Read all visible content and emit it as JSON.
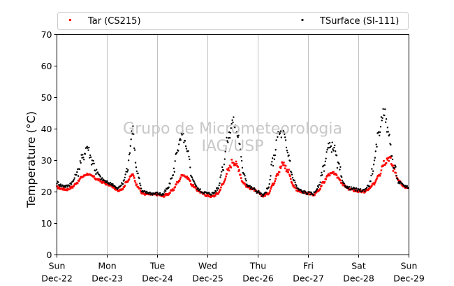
{
  "chart_data": {
    "type": "scatter",
    "ylabel": "Temperature (°C)",
    "ylim": [
      0,
      70
    ],
    "xlim": [
      0,
      7
    ],
    "yticks": [
      0,
      10,
      20,
      30,
      40,
      50,
      60,
      70
    ],
    "xticks": [
      {
        "day": "Sun",
        "date": "Dec-22"
      },
      {
        "day": "Mon",
        "date": "Dec-23"
      },
      {
        "day": "Tue",
        "date": "Dec-24"
      },
      {
        "day": "Wed",
        "date": "Dec-25"
      },
      {
        "day": "Thu",
        "date": "Dec-26"
      },
      {
        "day": "Fri",
        "date": "Dec-27"
      },
      {
        "day": "Sat",
        "date": "Dec-28"
      },
      {
        "day": "Sun",
        "date": "Dec-29"
      }
    ],
    "grid": "vertical",
    "legend": "top",
    "watermark": [
      "Grupo de Micrometeorologia",
      "IAG/USP"
    ],
    "series": [
      {
        "name": "Tar (CS215)",
        "color": "#ff0000",
        "marker": "square",
        "x": [
          0.0,
          0.1,
          0.2,
          0.3,
          0.4,
          0.5,
          0.6,
          0.7,
          0.8,
          0.9,
          1.0,
          1.1,
          1.2,
          1.3,
          1.4,
          1.5,
          1.6,
          1.7,
          1.8,
          1.9,
          2.0,
          2.1,
          2.2,
          2.3,
          2.4,
          2.5,
          2.6,
          2.7,
          2.8,
          2.9,
          3.0,
          3.1,
          3.2,
          3.3,
          3.4,
          3.5,
          3.6,
          3.7,
          3.8,
          3.9,
          4.0,
          4.1,
          4.2,
          4.3,
          4.4,
          4.5,
          4.6,
          4.7,
          4.8,
          4.9,
          5.0,
          5.1,
          5.2,
          5.3,
          5.4,
          5.5,
          5.6,
          5.7,
          5.8,
          5.9,
          6.0,
          6.1,
          6.2,
          6.3,
          6.4,
          6.5,
          6.6,
          6.7,
          6.8,
          6.9,
          7.0
        ],
        "y": [
          21.5,
          21.0,
          20.8,
          21.5,
          23.0,
          24.8,
          25.7,
          25.0,
          24.0,
          23.2,
          22.5,
          21.8,
          20.5,
          21.0,
          23.5,
          25.5,
          22.0,
          19.5,
          19.3,
          19.2,
          19.2,
          18.7,
          19.3,
          20.5,
          23.0,
          25.5,
          24.5,
          22.0,
          20.5,
          19.5,
          18.8,
          18.6,
          19.5,
          22.5,
          26.5,
          30.0,
          28.0,
          23.0,
          21.5,
          20.8,
          19.8,
          18.7,
          19.5,
          22.5,
          26.5,
          29.0,
          26.5,
          22.0,
          20.3,
          19.8,
          19.5,
          19.0,
          20.5,
          23.0,
          25.5,
          26.0,
          24.5,
          22.0,
          21.0,
          20.5,
          20.2,
          20.0,
          20.8,
          22.5,
          25.5,
          29.5,
          31.0,
          27.5,
          23.5,
          21.5,
          21.0
        ]
      },
      {
        "name": "TSurface (SI-111)",
        "color": "#000000",
        "marker": "circle",
        "x": [
          0.0,
          0.1,
          0.2,
          0.3,
          0.4,
          0.5,
          0.6,
          0.7,
          0.8,
          0.9,
          1.0,
          1.1,
          1.2,
          1.3,
          1.4,
          1.5,
          1.6,
          1.7,
          1.8,
          1.9,
          2.0,
          2.1,
          2.2,
          2.3,
          2.4,
          2.5,
          2.6,
          2.7,
          2.8,
          2.9,
          3.0,
          3.1,
          3.2,
          3.3,
          3.4,
          3.5,
          3.6,
          3.7,
          3.8,
          3.9,
          4.0,
          4.1,
          4.2,
          4.3,
          4.4,
          4.5,
          4.6,
          4.7,
          4.8,
          4.9,
          5.0,
          5.1,
          5.2,
          5.3,
          5.4,
          5.5,
          5.6,
          5.7,
          5.8,
          5.9,
          6.0,
          6.1,
          6.2,
          6.3,
          6.4,
          6.5,
          6.6,
          6.7,
          6.8,
          6.9,
          7.0
        ],
        "y": [
          23.0,
          22.0,
          21.8,
          23.0,
          26.0,
          30.5,
          34.5,
          30.0,
          26.0,
          24.0,
          23.0,
          22.5,
          21.0,
          22.5,
          27.0,
          40.0,
          26.0,
          20.0,
          19.8,
          19.5,
          19.5,
          19.2,
          21.0,
          25.0,
          34.0,
          38.0,
          32.0,
          24.0,
          21.0,
          20.0,
          19.5,
          19.5,
          21.0,
          28.0,
          37.0,
          42.5,
          38.0,
          27.0,
          22.0,
          21.0,
          20.0,
          18.8,
          21.0,
          30.0,
          38.5,
          38.5,
          32.0,
          24.0,
          20.8,
          20.0,
          19.6,
          19.5,
          21.5,
          28.0,
          34.0,
          34.5,
          28.0,
          22.5,
          21.2,
          21.0,
          20.5,
          20.5,
          22.0,
          28.0,
          39.0,
          46.0,
          38.0,
          28.0,
          23.0,
          22.0,
          21.5
        ]
      }
    ]
  }
}
